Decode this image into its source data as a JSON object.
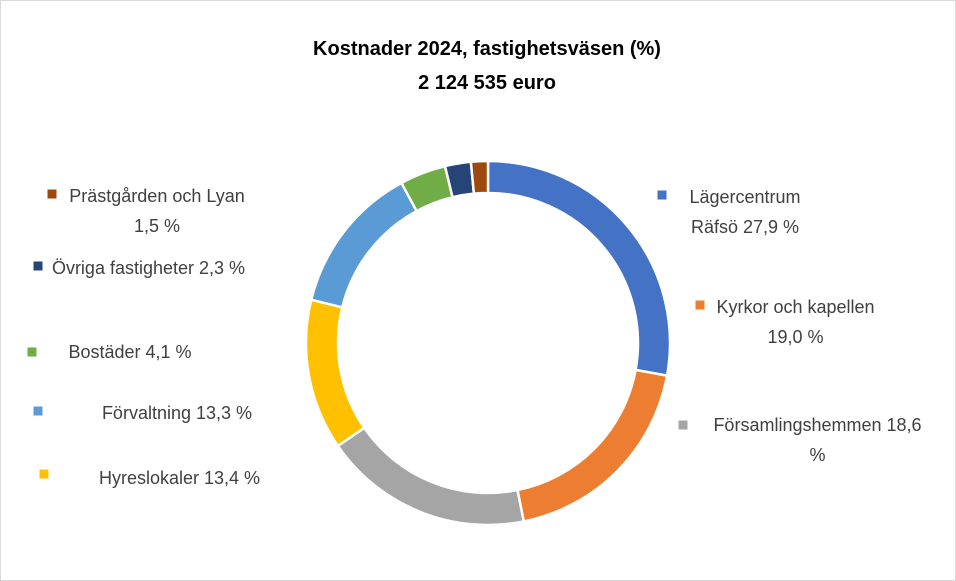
{
  "chart_data": {
    "type": "donut",
    "title": "Kostnader 2024, fastighetsväsen (%)",
    "subtitle": "2 124 535 euro",
    "categories": [
      "Lägercentrum Räfsö",
      "Kyrkor och kapellen",
      "Församlingshemmen",
      "Hyreslokaler",
      "Förvaltning",
      "Bostäder",
      "Övriga fastigheter",
      "Prästgården och Lyan"
    ],
    "values": [
      27.9,
      19.0,
      18.6,
      13.4,
      13.3,
      4.1,
      2.3,
      1.5
    ],
    "value_labels": [
      "27,9 %",
      "19,0 %",
      "18,6 %",
      "13,4 %",
      "13,3 %",
      "4,1 %",
      "2,3 %",
      "1,5 %"
    ],
    "colors": [
      "#4472c4",
      "#ed7d31",
      "#a5a5a5",
      "#ffc000",
      "#5b9bd5",
      "#70ad47",
      "#264478",
      "#9e480e"
    ]
  }
}
